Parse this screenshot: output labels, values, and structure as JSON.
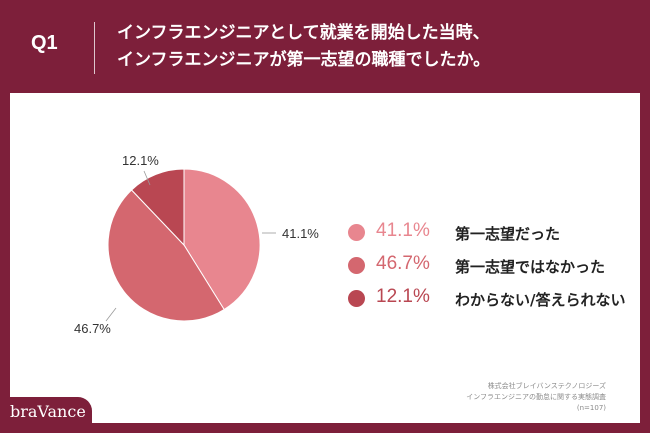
{
  "header": {
    "question_label": "Q1",
    "title_line1": "インフラエンジニアとして就業を開始した当時、",
    "title_line2": "インフラエンジニアが第一志望の職種でしたか。"
  },
  "colors": {
    "background": "#7d1f3a",
    "card": "#ffffff",
    "slice_first_choice": "#e8868f",
    "slice_not_first": "#d4676f",
    "slice_unknown": "#b94752"
  },
  "chart_data": {
    "type": "pie",
    "title": "",
    "labels": [
      "第一志望だった",
      "第一志望ではなかった",
      "わからない/答えられない"
    ],
    "values": [
      41.1,
      46.7,
      12.1
    ],
    "value_labels": [
      "41.1%",
      "46.7%",
      "12.1%"
    ],
    "start": "12 o'clock, clockwise",
    "legend_position": "right"
  },
  "source": {
    "line1": "株式会社ブレイバンステクノロジーズ",
    "line2": "インフラエンジニアの勤怠に関する実態調査",
    "line3": "(n=107)"
  },
  "brand": {
    "name": "braVance"
  }
}
